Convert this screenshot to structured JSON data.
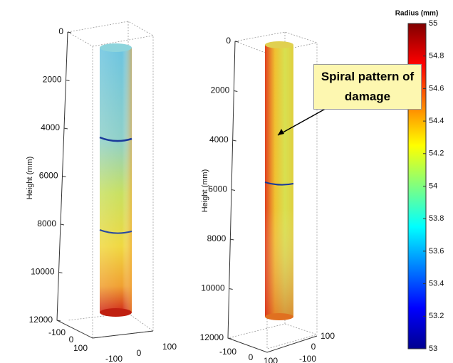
{
  "chart_data": [
    {
      "type": "surface3d",
      "zlabel": "Height (mm)",
      "zlim": [
        0,
        12000
      ],
      "zticks": [
        0,
        2000,
        4000,
        6000,
        8000,
        10000,
        12000
      ],
      "xticks": [
        -100,
        0,
        100
      ],
      "yticks": [
        -100,
        0,
        100
      ]
    },
    {
      "type": "surface3d",
      "zlabel": "Height (mm)",
      "zlim": [
        0,
        12000
      ],
      "zticks": [
        0,
        2000,
        4000,
        6000,
        8000,
        10000,
        12000
      ],
      "xticks": [
        -100,
        0,
        100
      ],
      "yticks": [
        -100,
        0,
        100
      ],
      "annotation": "Spiral pattern of damage"
    },
    {
      "type": "colorbar",
      "title": "Radius (mm)",
      "clim": [
        53,
        55
      ],
      "cticks": [
        53,
        53.2,
        53.4,
        53.6,
        53.8,
        54,
        54.2,
        54.4,
        54.6,
        54.8,
        55
      ]
    }
  ]
}
